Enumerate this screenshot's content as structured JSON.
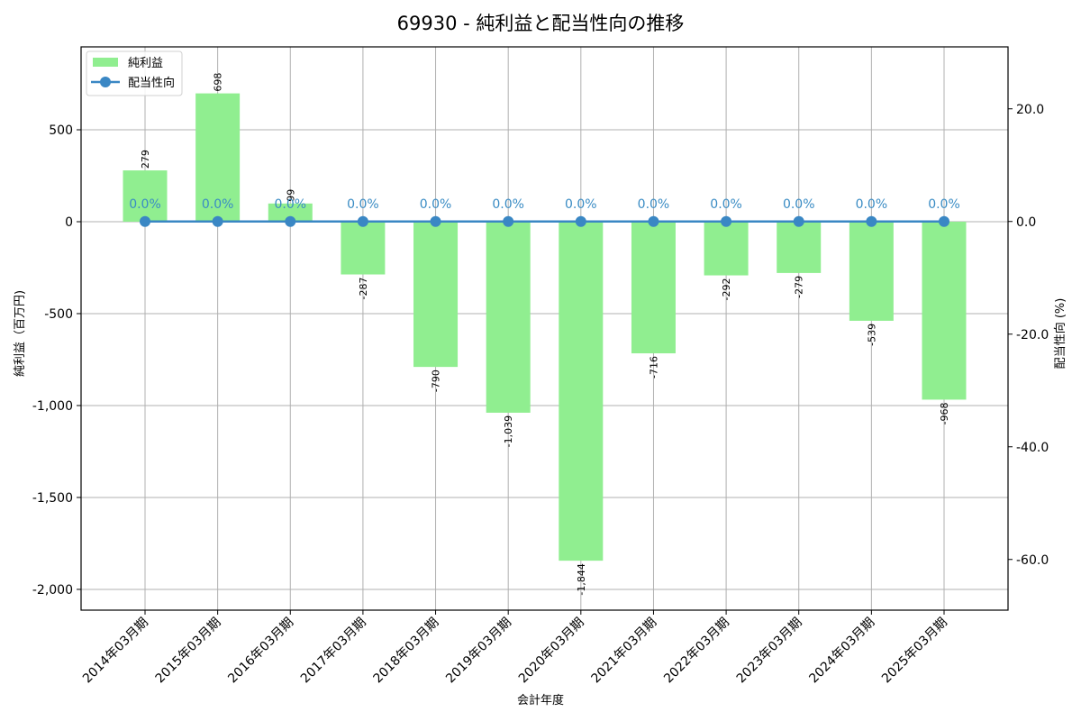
{
  "chart_data": {
    "type": "bar",
    "title": "69930 - 純利益と配当性向の推移",
    "xlabel": "会計年度",
    "ylabel": "純利益（百万円)",
    "y2label": "配当性向 (%)",
    "categories": [
      "2014年03月期",
      "2015年03月期",
      "2016年03月期",
      "2017年03月期",
      "2018年03月期",
      "2019年03月期",
      "2020年03月期",
      "2021年03月期",
      "2022年03月期",
      "2023年03月期",
      "2024年03月期",
      "2025年03月期"
    ],
    "series": [
      {
        "name": "純利益",
        "type": "bar",
        "axis": "left",
        "color": "#90ee90",
        "values": [
          279,
          698,
          99,
          -287,
          -790,
          -1039,
          -1844,
          -716,
          -292,
          -279,
          -539,
          -968
        ],
        "labels": [
          "279",
          "698",
          "99",
          "-287",
          "-790",
          "-1,039",
          "-1,844",
          "-716",
          "-292",
          "-279",
          "-539",
          "-968"
        ]
      },
      {
        "name": "配当性向",
        "type": "line",
        "axis": "right",
        "color": "#3a87c4",
        "values": [
          0.0,
          0.0,
          0.0,
          0.0,
          0.0,
          0.0,
          0.0,
          0.0,
          0.0,
          0.0,
          0.0,
          0.0
        ],
        "labels": [
          "0.0%",
          "0.0%",
          "0.0%",
          "0.0%",
          "0.0%",
          "0.0%",
          "0.0%",
          "0.0%",
          "0.0%",
          "0.0%",
          "0.0%",
          "0.0%"
        ]
      }
    ],
    "ylim": [
      -2113,
      951
    ],
    "y2lim": [
      -69,
      31
    ],
    "yticks": [
      500,
      0,
      -500,
      -1000,
      -1500,
      -2000
    ],
    "ytick_labels": [
      "500",
      "0",
      "-500",
      "-1,000",
      "-1,500",
      "-2,000"
    ],
    "y2ticks": [
      20,
      0,
      -20,
      -40,
      -60
    ],
    "y2tick_labels": [
      "20.0",
      "0.0",
      "-20.0",
      "-40.0",
      "-60.0"
    ],
    "grid": true,
    "legend_position": "upper left"
  },
  "legend": {
    "items": [
      {
        "label": "純利益",
        "kind": "bar",
        "color": "#90ee90"
      },
      {
        "label": "配当性向",
        "kind": "line",
        "color": "#3a87c4"
      }
    ]
  }
}
